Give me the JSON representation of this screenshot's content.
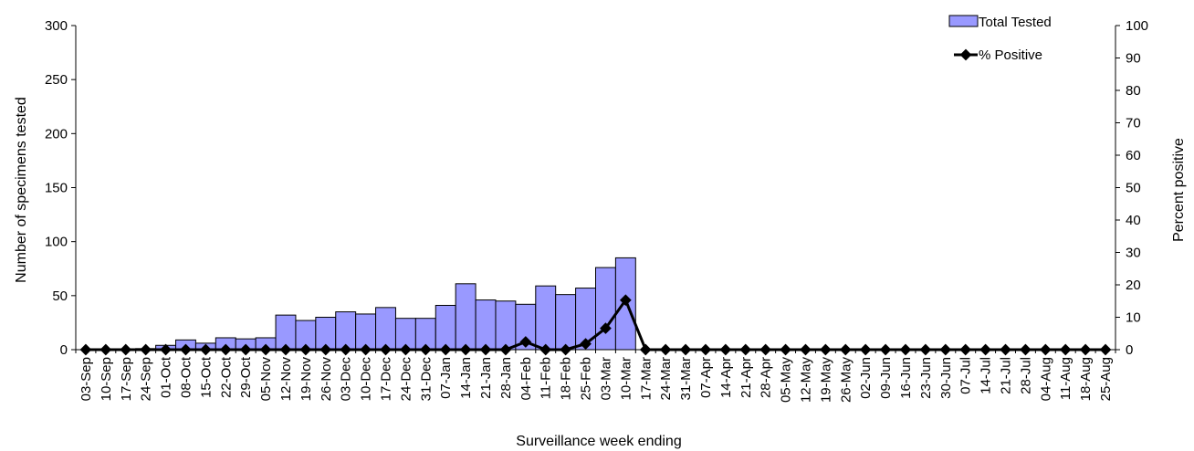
{
  "chart_data": {
    "type": "bar",
    "title": "",
    "xlabel": "Surveillance week ending",
    "ylabel": "Number of specimens tested",
    "y2label": "Percent positive",
    "ylim": [
      0,
      300
    ],
    "y2lim": [
      0,
      100
    ],
    "yticks": [
      0,
      50,
      100,
      150,
      200,
      250,
      300
    ],
    "y2ticks": [
      0,
      10,
      20,
      30,
      40,
      50,
      60,
      70,
      80,
      90,
      100
    ],
    "grid": false,
    "legend": "top-right",
    "colors": {
      "bar_fill": "#9999ff",
      "bar_stroke": "#000000",
      "line": "#000000"
    },
    "categories": [
      "03-Sep",
      "10-Sep",
      "17-Sep",
      "24-Sep",
      "01-Oct",
      "08-Oct",
      "15-Oct",
      "22-Oct",
      "29-Oct",
      "05-Nov",
      "12-Nov",
      "19-Nov",
      "26-Nov",
      "03-Dec",
      "10-Dec",
      "17-Dec",
      "24-Dec",
      "31-Dec",
      "07-Jan",
      "14-Jan",
      "21-Jan",
      "28-Jan",
      "04-Feb",
      "11-Feb",
      "18-Feb",
      "25-Feb",
      "03-Mar",
      "10-Mar",
      "17-Mar",
      "24-Mar",
      "31-Mar",
      "07-Apr",
      "14-Apr",
      "21-Apr",
      "28-Apr",
      "05-May",
      "12-May",
      "19-May",
      "26-May",
      "02-Jun",
      "09-Jun",
      "16-Jun",
      "23-Jun",
      "30-Jun",
      "07-Jul",
      "14-Jul",
      "21-Jul",
      "28-Jul",
      "04-Aug",
      "11-Aug",
      "18-Aug",
      "25-Aug"
    ],
    "series": [
      {
        "name": "Total Tested",
        "type": "bar",
        "axis": "left",
        "values": [
          0,
          0,
          0,
          1,
          4,
          9,
          6,
          11,
          10,
          11,
          32,
          27,
          30,
          35,
          33,
          39,
          29,
          29,
          41,
          61,
          46,
          45,
          42,
          59,
          51,
          57,
          76,
          85,
          0,
          0,
          0,
          0,
          0,
          0,
          0,
          0,
          0,
          0,
          0,
          0,
          0,
          0,
          0,
          0,
          0,
          0,
          0,
          0,
          0,
          0,
          0,
          0
        ]
      },
      {
        "name": "% Positive",
        "type": "line",
        "axis": "right",
        "values": [
          0,
          0,
          0,
          0,
          0,
          0,
          0,
          0,
          0,
          0,
          0,
          0,
          0,
          0,
          0,
          0,
          0,
          0,
          0,
          0,
          0,
          0,
          2.4,
          0,
          0,
          1.8,
          6.6,
          15.3,
          0,
          0,
          0,
          0,
          0,
          0,
          0,
          0,
          0,
          0,
          0,
          0,
          0,
          0,
          0,
          0,
          0,
          0,
          0,
          0,
          0,
          0,
          0,
          0
        ]
      }
    ]
  }
}
